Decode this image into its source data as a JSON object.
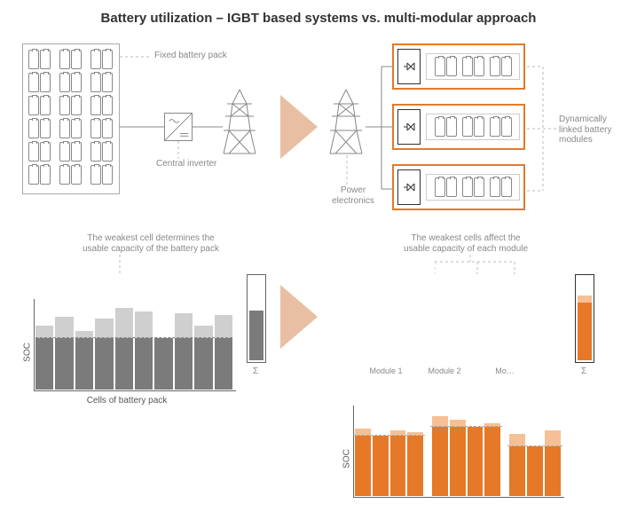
{
  "title": "Battery utilization – IGBT based systems vs. multi-modular approach",
  "colors": {
    "gray_cell_border": "#888888",
    "gray_bar_main": "#7b7b7b",
    "gray_bar_light": "#cfcfcf",
    "orange_border": "#e57928",
    "orange_bar_main": "#e57928",
    "orange_bar_light": "#f5c095",
    "axis": "#666666",
    "dashed": "#aaaaaa",
    "text_label": "#999999"
  },
  "left": {
    "pack_label": "Fixed battery pack",
    "inverter_label": "Central inverter",
    "chart_caption": "The weakest cell determines the\nusable capacity of the battery pack",
    "chart_ylabel": "SOC",
    "chart_xlabel": "Cells of battery pack",
    "sigma_label": "Σ",
    "bars": [
      {
        "main": 58,
        "extra": 14
      },
      {
        "main": 58,
        "extra": 24
      },
      {
        "main": 58,
        "extra": 8
      },
      {
        "main": 58,
        "extra": 22
      },
      {
        "main": 58,
        "extra": 34
      },
      {
        "main": 58,
        "extra": 30
      },
      {
        "main": 58,
        "extra": 0
      },
      {
        "main": 58,
        "extra": 28
      },
      {
        "main": 58,
        "extra": 14
      },
      {
        "main": 58,
        "extra": 26
      }
    ],
    "sigma": {
      "main": 58,
      "extra": 0
    },
    "ymax": 100
  },
  "right": {
    "modules_label": "Dynamically\nlinked battery\nmodules",
    "pe_label": "Power\nelectronics",
    "chart_caption": "The weakest cells affect the\nusable capacity of each module",
    "chart_ylabel": "SOC",
    "module_labels": [
      "Module 1",
      "Module 2",
      "Mo…"
    ],
    "sigma_label": "Σ",
    "groups": [
      {
        "bars": [
          {
            "main": 68,
            "extra": 8
          },
          {
            "main": 68,
            "extra": 0
          },
          {
            "main": 68,
            "extra": 6
          },
          {
            "main": 68,
            "extra": 4
          }
        ],
        "line": 68
      },
      {
        "bars": [
          {
            "main": 78,
            "extra": 12
          },
          {
            "main": 78,
            "extra": 8
          },
          {
            "main": 78,
            "extra": 0
          },
          {
            "main": 78,
            "extra": 4
          }
        ],
        "line": 78
      },
      {
        "bars": [
          {
            "main": 56,
            "extra": 14
          },
          {
            "main": 56,
            "extra": 0
          },
          {
            "main": 56,
            "extra": 18
          }
        ],
        "line": 56
      }
    ],
    "sigma": {
      "main": 68,
      "extra": 8
    },
    "ymax": 100
  },
  "arrow_color": "#e8bfa3"
}
